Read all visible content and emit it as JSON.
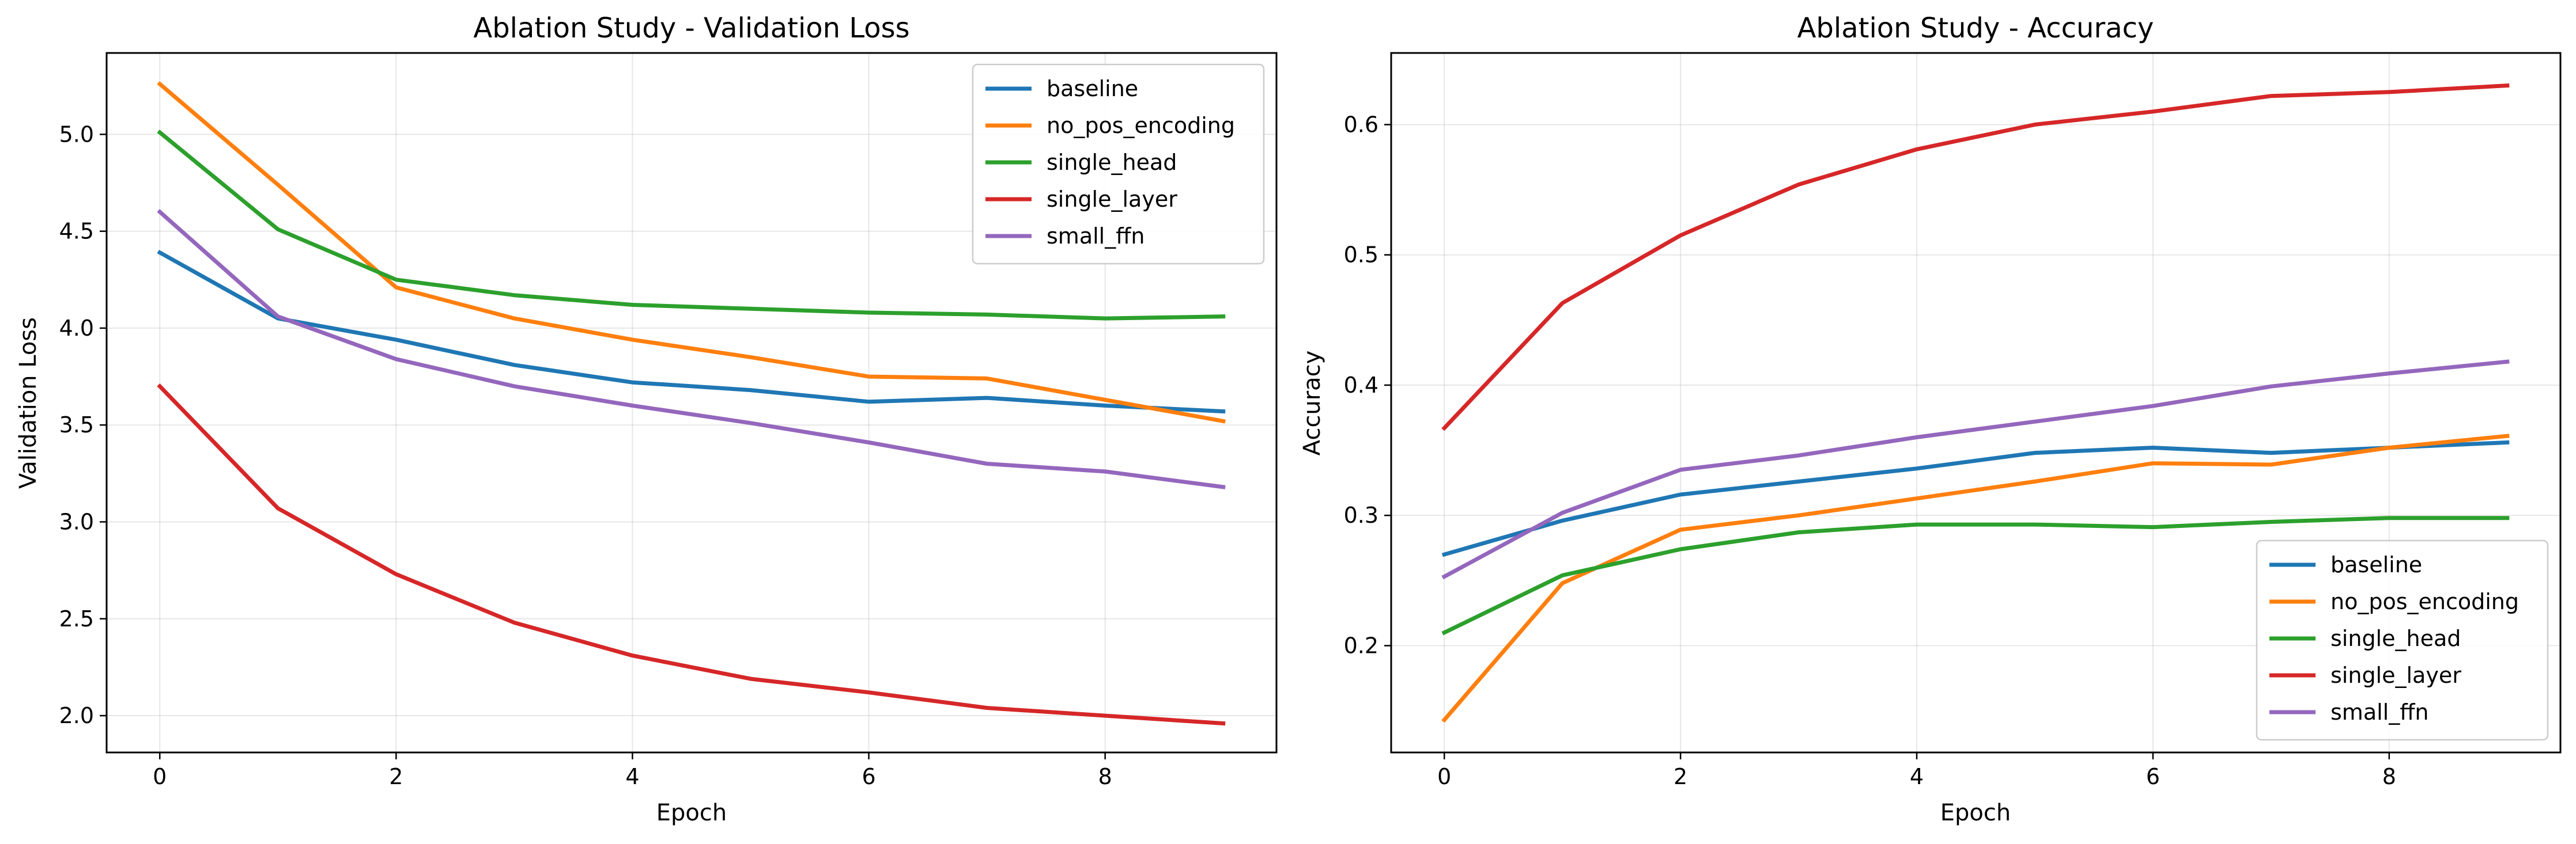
{
  "chart_data": [
    {
      "type": "line",
      "title": "Ablation Study - Validation Loss",
      "xlabel": "Epoch",
      "ylabel": "Validation Loss",
      "x": [
        0,
        1,
        2,
        3,
        4,
        5,
        6,
        7,
        8,
        9
      ],
      "xlim": [
        -0.45,
        9.45
      ],
      "ylim": [
        1.81,
        5.42
      ],
      "xticks": [
        0,
        2,
        4,
        6,
        8
      ],
      "yticks": [
        2.0,
        2.5,
        3.0,
        3.5,
        4.0,
        4.5,
        5.0
      ],
      "ytick_labels": [
        "2.0",
        "2.5",
        "3.0",
        "3.5",
        "4.0",
        "4.5",
        "5.0"
      ],
      "grid": true,
      "legend": "top-right",
      "series": [
        {
          "name": "baseline",
          "color": "#1f77b4",
          "values": [
            4.39,
            4.05,
            3.94,
            3.81,
            3.72,
            3.68,
            3.62,
            3.64,
            3.6,
            3.57
          ]
        },
        {
          "name": "no_pos_encoding",
          "color": "#ff7f0e",
          "values": [
            5.26,
            4.74,
            4.21,
            4.05,
            3.94,
            3.85,
            3.75,
            3.74,
            3.63,
            3.52
          ]
        },
        {
          "name": "single_head",
          "color": "#2ca02c",
          "values": [
            5.01,
            4.51,
            4.25,
            4.17,
            4.12,
            4.1,
            4.08,
            4.07,
            4.05,
            4.06
          ]
        },
        {
          "name": "single_layer",
          "color": "#d62728",
          "values": [
            3.7,
            3.07,
            2.73,
            2.48,
            2.31,
            2.19,
            2.12,
            2.04,
            2.0,
            1.96
          ]
        },
        {
          "name": "small_ffn",
          "color": "#9467bd",
          "values": [
            4.6,
            4.06,
            3.84,
            3.7,
            3.6,
            3.51,
            3.41,
            3.3,
            3.26,
            3.18
          ]
        }
      ]
    },
    {
      "type": "line",
      "title": "Ablation Study - Accuracy",
      "xlabel": "Epoch",
      "ylabel": "Accuracy",
      "x": [
        0,
        1,
        2,
        3,
        4,
        5,
        6,
        7,
        8,
        9
      ],
      "xlim": [
        -0.45,
        9.45
      ],
      "ylim": [
        0.118,
        0.655
      ],
      "xticks": [
        0,
        2,
        4,
        6,
        8
      ],
      "yticks": [
        0.2,
        0.3,
        0.4,
        0.5,
        0.6
      ],
      "ytick_labels": [
        "0.2",
        "0.3",
        "0.4",
        "0.5",
        "0.6"
      ],
      "grid": true,
      "legend": "bottom-right",
      "series": [
        {
          "name": "baseline",
          "color": "#1f77b4",
          "values": [
            0.27,
            0.296,
            0.316,
            0.326,
            0.336,
            0.348,
            0.352,
            0.348,
            0.352,
            0.356
          ]
        },
        {
          "name": "no_pos_encoding",
          "color": "#ff7f0e",
          "values": [
            0.143,
            0.248,
            0.289,
            0.3,
            0.313,
            0.326,
            0.34,
            0.339,
            0.352,
            0.361
          ]
        },
        {
          "name": "single_head",
          "color": "#2ca02c",
          "values": [
            0.21,
            0.254,
            0.274,
            0.287,
            0.293,
            0.293,
            0.291,
            0.295,
            0.298,
            0.298
          ]
        },
        {
          "name": "single_layer",
          "color": "#d62728",
          "values": [
            0.367,
            0.463,
            0.515,
            0.554,
            0.581,
            0.6,
            0.61,
            0.622,
            0.625,
            0.63
          ]
        },
        {
          "name": "small_ffn",
          "color": "#9467bd",
          "values": [
            0.253,
            0.302,
            0.335,
            0.346,
            0.36,
            0.372,
            0.384,
            0.399,
            0.409,
            0.418
          ]
        }
      ]
    }
  ]
}
